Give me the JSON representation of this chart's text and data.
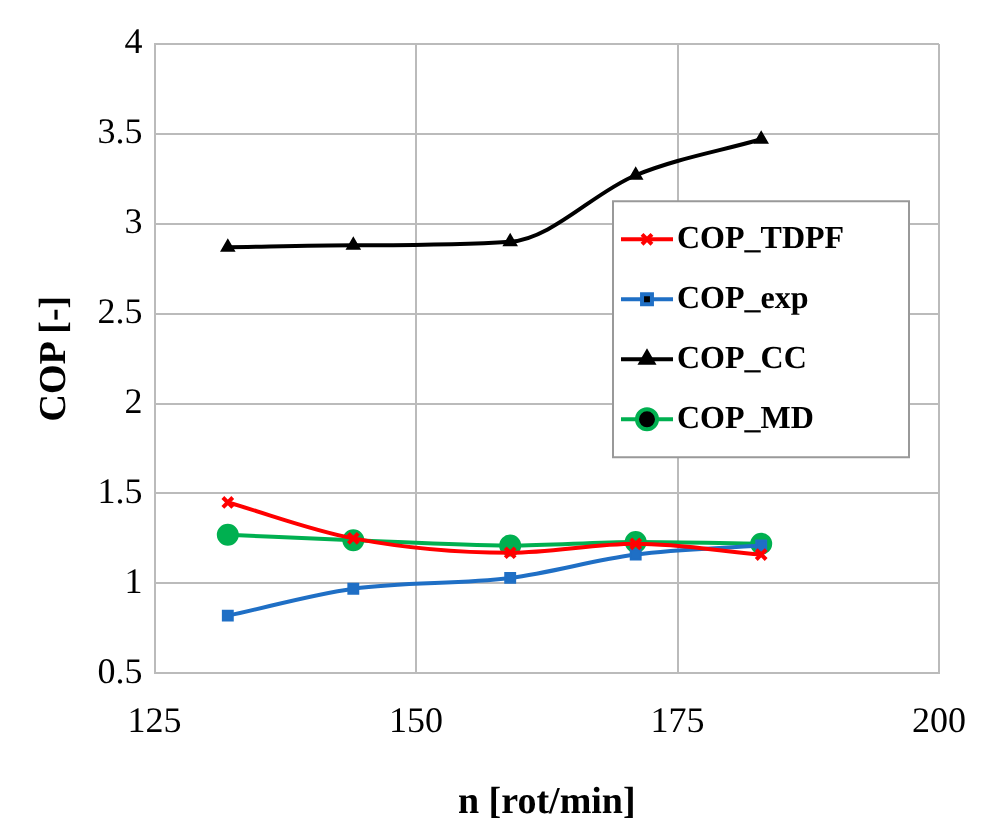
{
  "chart_data": {
    "type": "line",
    "xlabel": "n [rot/min]",
    "ylabel": "COP [-]",
    "x": [
      132,
      144,
      159,
      171,
      183
    ],
    "series": [
      {
        "name": "COP_TDPF",
        "color": "#ff0000",
        "values": [
          1.45,
          1.25,
          1.17,
          1.22,
          1.16
        ],
        "marker": "cross"
      },
      {
        "name": "COP_exp",
        "color": "#1f6fc5",
        "values": [
          0.82,
          0.97,
          1.03,
          1.16,
          1.21
        ],
        "marker": "square"
      },
      {
        "name": "COP_CC",
        "color": "#000000",
        "values": [
          2.87,
          2.88,
          2.9,
          3.27,
          3.47
        ],
        "marker": "triangle"
      },
      {
        "name": "COP_MD",
        "color": "#00b050",
        "values": [
          1.27,
          1.24,
          1.21,
          1.23,
          1.22
        ],
        "marker": "circle"
      }
    ],
    "xlim": [
      125,
      200
    ],
    "xticks": [
      125,
      150,
      175,
      200
    ],
    "ylim": [
      0.5,
      4
    ],
    "yticks": [
      0.5,
      1,
      1.5,
      2,
      2.5,
      3,
      3.5,
      4
    ],
    "grid": true,
    "legend": "right",
    "line_style": "solid"
  }
}
